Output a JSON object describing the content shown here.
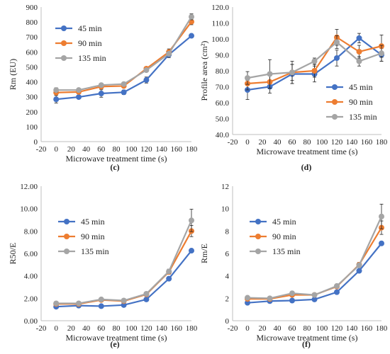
{
  "colors": {
    "45 min": "#4472C4",
    "90 min": "#ED7D31",
    "135 min": "#A5A5A5"
  },
  "chart_data": [
    {
      "type": "line",
      "panel_label": "(c)",
      "xlabel": "Microwave treatment time (s)",
      "ylabel": "Rm (EU)",
      "xlim": [
        -20,
        180
      ],
      "ylim": [
        0,
        900
      ],
      "xticks": [
        "-20",
        "0",
        "20",
        "40",
        "60",
        "80",
        "100",
        "120",
        "140",
        "160",
        "180"
      ],
      "yticks": [
        "0",
        "100",
        "200",
        "300",
        "400",
        "500",
        "600",
        "700",
        "800",
        "900"
      ],
      "grid": false,
      "legend_position": "upper-left",
      "x": [
        0,
        30,
        60,
        90,
        120,
        150,
        180
      ],
      "series": [
        {
          "name": "45 min",
          "values": [
            283,
            298,
            322,
            330,
            412,
            582,
            708
          ],
          "errors": [
            25,
            10,
            25,
            15,
            20,
            20,
            5
          ]
        },
        {
          "name": "90 min",
          "values": [
            328,
            332,
            368,
            372,
            488,
            600,
            802
          ],
          "errors": [
            15,
            10,
            15,
            10,
            10,
            20,
            20
          ]
        },
        {
          "name": "135 min",
          "values": [
            345,
            345,
            378,
            385,
            478,
            588,
            835
          ],
          "errors": [
            15,
            10,
            10,
            10,
            10,
            15,
            20
          ]
        }
      ]
    },
    {
      "type": "line",
      "panel_label": "(d)",
      "xlabel": "Microwave treatment time (s)",
      "ylabel": "Profile area (cm²)",
      "xlim": [
        -20,
        180
      ],
      "ylim": [
        40,
        120
      ],
      "xticks": [
        "-20",
        "0",
        "20",
        "40",
        "60",
        "80",
        "100",
        "120",
        "140",
        "160",
        "180"
      ],
      "yticks": [
        "40.0",
        "50.0",
        "60.0",
        "70.0",
        "80.0",
        "90.0",
        "100.0",
        "110.0",
        "120.0"
      ],
      "grid": false,
      "legend_position": "lower-right",
      "x": [
        0,
        30,
        60,
        90,
        120,
        150,
        180
      ],
      "series": [
        {
          "name": "45 min",
          "values": [
            68,
            70,
            78,
            78,
            88,
            100.5,
            90
          ],
          "errors": [
            6,
            4,
            6,
            5,
            5,
            3,
            4
          ]
        },
        {
          "name": "90 min",
          "values": [
            72,
            73,
            79,
            80,
            101,
            92,
            95.5
          ],
          "errors": [
            4,
            4,
            5,
            4,
            5,
            4,
            7
          ]
        },
        {
          "name": "135 min",
          "values": [
            75.5,
            78,
            79,
            86,
            98,
            86,
            91
          ],
          "errors": [
            4,
            9,
            7,
            2,
            4,
            3,
            5
          ]
        }
      ]
    },
    {
      "type": "line",
      "panel_label": "(e)",
      "xlabel": "Microwave treatment time (s)",
      "ylabel": "R50/E",
      "xlim": [
        -20,
        180
      ],
      "ylim": [
        0,
        12
      ],
      "xticks": [
        "-20",
        "0",
        "20",
        "40",
        "60",
        "80",
        "100",
        "120",
        "140",
        "160",
        "180"
      ],
      "yticks": [
        "0.00",
        "2.00",
        "4.00",
        "6.00",
        "8.00",
        "10.00",
        "12.00"
      ],
      "grid": false,
      "legend_position": "upper-left",
      "x": [
        0,
        30,
        60,
        90,
        120,
        150,
        180
      ],
      "series": [
        {
          "name": "45 min",
          "values": [
            1.25,
            1.35,
            1.3,
            1.4,
            1.9,
            3.75,
            6.25
          ],
          "errors": [
            0.05,
            0.05,
            0.05,
            0.05,
            0.1,
            0.1,
            0.1
          ]
        },
        {
          "name": "90 min",
          "values": [
            1.5,
            1.5,
            1.85,
            1.75,
            2.35,
            4.35,
            8.0
          ],
          "errors": [
            0.1,
            0.05,
            0.1,
            0.1,
            0.1,
            0.2,
            0.5
          ]
        },
        {
          "name": "135 min",
          "values": [
            1.55,
            1.55,
            1.9,
            1.8,
            2.4,
            4.4,
            8.95
          ],
          "errors": [
            0.1,
            0.05,
            0.1,
            0.1,
            0.1,
            0.2,
            1.0
          ]
        }
      ]
    },
    {
      "type": "line",
      "panel_label": "(f)",
      "xlabel": "Microwave treatment time (s)",
      "ylabel": "Rm/E",
      "xlim": [
        -20,
        180
      ],
      "ylim": [
        0,
        12
      ],
      "xticks": [
        "-20",
        "0",
        "20",
        "40",
        "60",
        "80",
        "100",
        "120",
        "140",
        "160",
        "180"
      ],
      "yticks": [
        "0",
        "2",
        "4",
        "6",
        "8",
        "10",
        "12"
      ],
      "grid": false,
      "legend_position": "upper-left",
      "x": [
        0,
        30,
        60,
        90,
        120,
        150,
        180
      ],
      "series": [
        {
          "name": "45 min",
          "values": [
            1.6,
            1.75,
            1.8,
            1.9,
            2.55,
            4.45,
            6.9
          ],
          "errors": [
            0.05,
            0.05,
            0.05,
            0.05,
            0.1,
            0.1,
            0.1
          ]
        },
        {
          "name": "90 min",
          "values": [
            1.95,
            1.95,
            2.3,
            2.3,
            3.05,
            5.0,
            8.3
          ],
          "errors": [
            0.1,
            0.05,
            0.1,
            0.1,
            0.1,
            0.2,
            0.6
          ]
        },
        {
          "name": "135 min",
          "values": [
            2.05,
            2.0,
            2.45,
            2.3,
            3.1,
            4.95,
            9.3
          ],
          "errors": [
            0.1,
            0.05,
            0.1,
            0.1,
            0.1,
            0.2,
            1.1
          ]
        }
      ]
    }
  ]
}
